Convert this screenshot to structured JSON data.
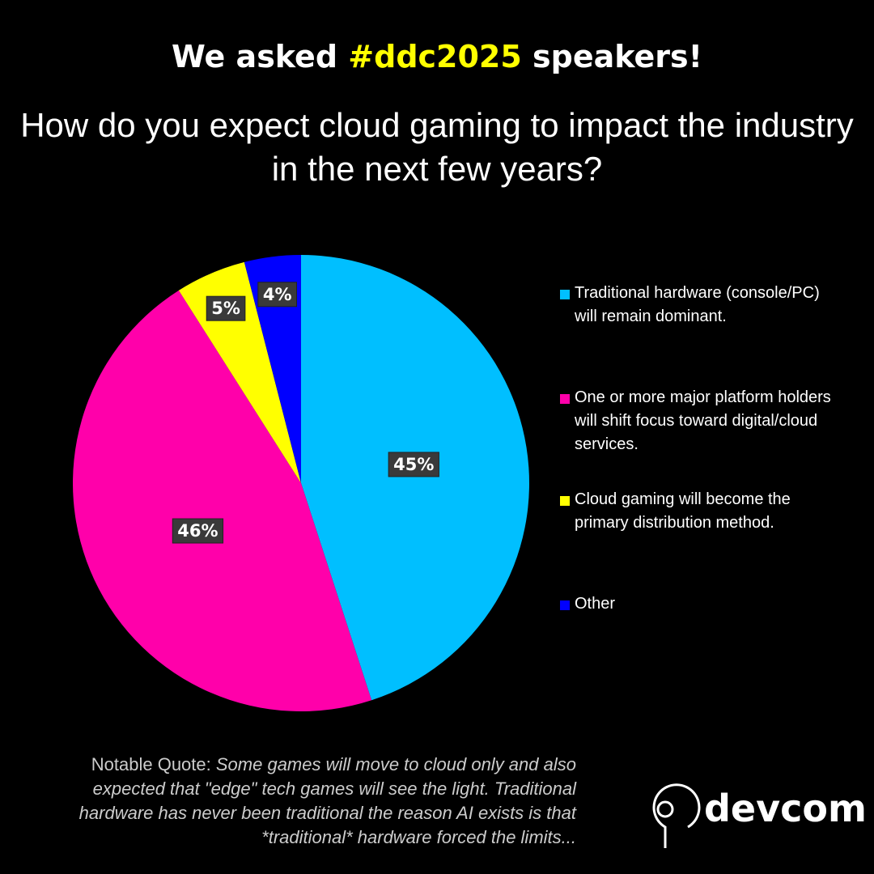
{
  "header": {
    "lead": "We asked",
    "hashtag": "#ddc2025",
    "tail": "speakers!"
  },
  "chart_data": {
    "type": "pie",
    "title": "How do you expect cloud gaming to impact the industry in the next few years?",
    "categories": [
      "Traditional hardware (console/PC) will remain dominant.",
      "One or more major platform holders will shift focus toward digital/cloud services.",
      "Cloud gaming will become the primary distribution method.",
      "Other"
    ],
    "values": [
      45,
      46,
      5,
      4
    ],
    "value_labels": [
      "45%",
      "46%",
      "5%",
      "4%"
    ],
    "colors": [
      "#00bfff",
      "#ff00aa",
      "#ffff00",
      "#0000ff"
    ]
  },
  "quote": {
    "label": "Notable Quote:",
    "text": "Some games will move to cloud only and also expected that \"edge\" tech games will see the light. Traditional hardware has never been traditional the reason AI exists is that *traditional* hardware forced the limits..."
  },
  "logo": {
    "text": "devcom"
  }
}
